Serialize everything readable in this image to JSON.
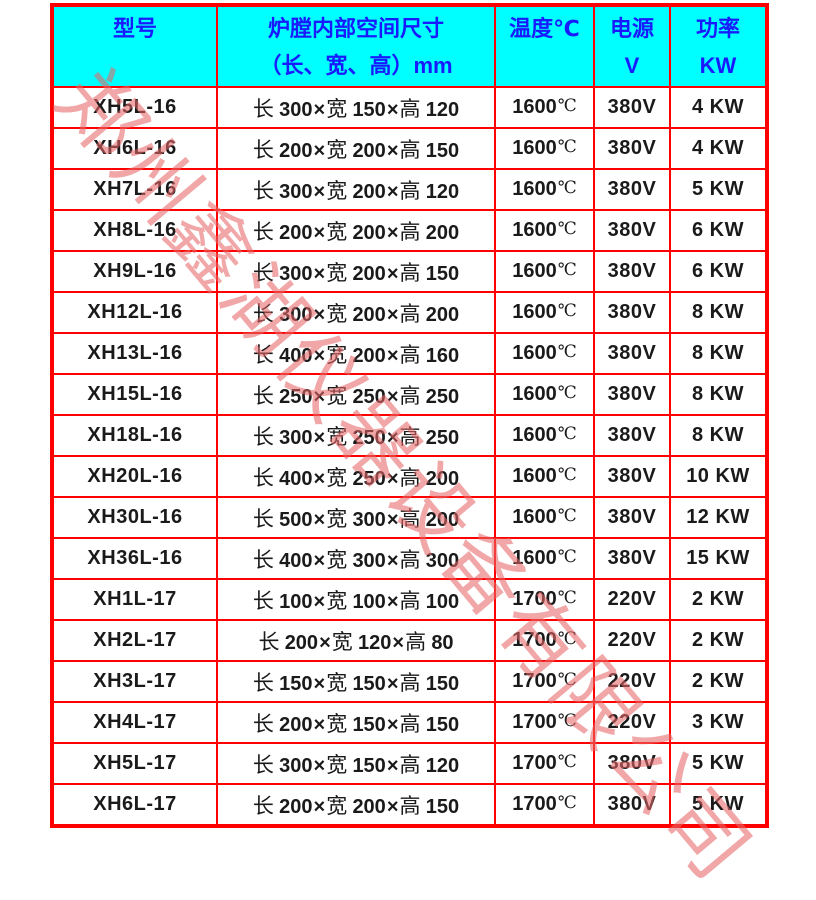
{
  "watermark": {
    "text": "郑州鑫湖仪器设备有限公司",
    "color": "rgba(231,103,103,0.58)"
  },
  "table": {
    "colors": {
      "border": "#ff0000",
      "header_bg": "#00ffff",
      "header_text": "#1a1aff",
      "body_text": "#1a1a1a"
    },
    "columns": [
      {
        "line1": "型号",
        "line2": ""
      },
      {
        "line1": "炉膛内部空间尺寸",
        "line2": "（长、宽、高）mm"
      },
      {
        "line1": "温度℃",
        "line2": ""
      },
      {
        "line1": "电源",
        "line2": "V"
      },
      {
        "line1": "功率",
        "line2": "KW"
      }
    ],
    "dim_labels": {
      "length": "长",
      "width": "宽",
      "height": "高",
      "sep": "×"
    },
    "celsius": "℃",
    "rows": [
      {
        "model": "XH5L-16",
        "l": "300",
        "w": "150",
        "h": "120",
        "temp": "1600",
        "voltage": "380V",
        "power": "4 KW"
      },
      {
        "model": "XH6L-16",
        "l": "200",
        "w": "200",
        "h": "150",
        "temp": "1600",
        "voltage": "380V",
        "power": "4 KW"
      },
      {
        "model": "XH7L-16",
        "l": "300",
        "w": "200",
        "h": "120",
        "temp": "1600",
        "voltage": "380V",
        "power": "5 KW"
      },
      {
        "model": "XH8L-16",
        "l": "200",
        "w": "200",
        "h": "200",
        "temp": "1600",
        "voltage": "380V",
        "power": "6 KW"
      },
      {
        "model": "XH9L-16",
        "l": "300",
        "w": "200",
        "h": "150",
        "temp": "1600",
        "voltage": "380V",
        "power": "6 KW"
      },
      {
        "model": "XH12L-16",
        "l": "300",
        "w": "200",
        "h": "200",
        "temp": "1600",
        "voltage": "380V",
        "power": "8 KW"
      },
      {
        "model": "XH13L-16",
        "l": "400",
        "w": "200",
        "h": "160",
        "temp": "1600",
        "voltage": "380V",
        "power": "8 KW"
      },
      {
        "model": "XH15L-16",
        "l": "250",
        "w": "250",
        "h": "250",
        "temp": "1600",
        "voltage": "380V",
        "power": "8 KW"
      },
      {
        "model": "XH18L-16",
        "l": "300",
        "w": "250",
        "h": "250",
        "temp": "1600",
        "voltage": "380V",
        "power": "8 KW"
      },
      {
        "model": "XH20L-16",
        "l": "400",
        "w": "250",
        "h": "200",
        "temp": "1600",
        "voltage": "380V",
        "power": "10 KW"
      },
      {
        "model": "XH30L-16",
        "l": "500",
        "w": "300",
        "h": "200",
        "temp": "1600",
        "voltage": "380V",
        "power": "12 KW"
      },
      {
        "model": "XH36L-16",
        "l": "400",
        "w": "300",
        "h": "300",
        "temp": "1600",
        "voltage": "380V",
        "power": "15 KW"
      },
      {
        "model": "XH1L-17",
        "l": "100",
        "w": "100",
        "h": "100",
        "temp": "1700",
        "voltage": "220V",
        "power": "2 KW"
      },
      {
        "model": "XH2L-17",
        "l": "200",
        "w": "120",
        "h": "80",
        "temp": "1700",
        "voltage": "220V",
        "power": "2 KW"
      },
      {
        "model": "XH3L-17",
        "l": "150",
        "w": "150",
        "h": "150",
        "temp": "1700",
        "voltage": "220V",
        "power": "2 KW"
      },
      {
        "model": "XH4L-17",
        "l": "200",
        "w": "150",
        "h": "150",
        "temp": "1700",
        "voltage": "220V",
        "power": "3 KW"
      },
      {
        "model": "XH5L-17",
        "l": "300",
        "w": "150",
        "h": "120",
        "temp": "1700",
        "voltage": "380V",
        "power": "5 KW"
      },
      {
        "model": "XH6L-17",
        "l": "200",
        "w": "200",
        "h": "150",
        "temp": "1700",
        "voltage": "380V",
        "power": "5 KW"
      }
    ]
  }
}
